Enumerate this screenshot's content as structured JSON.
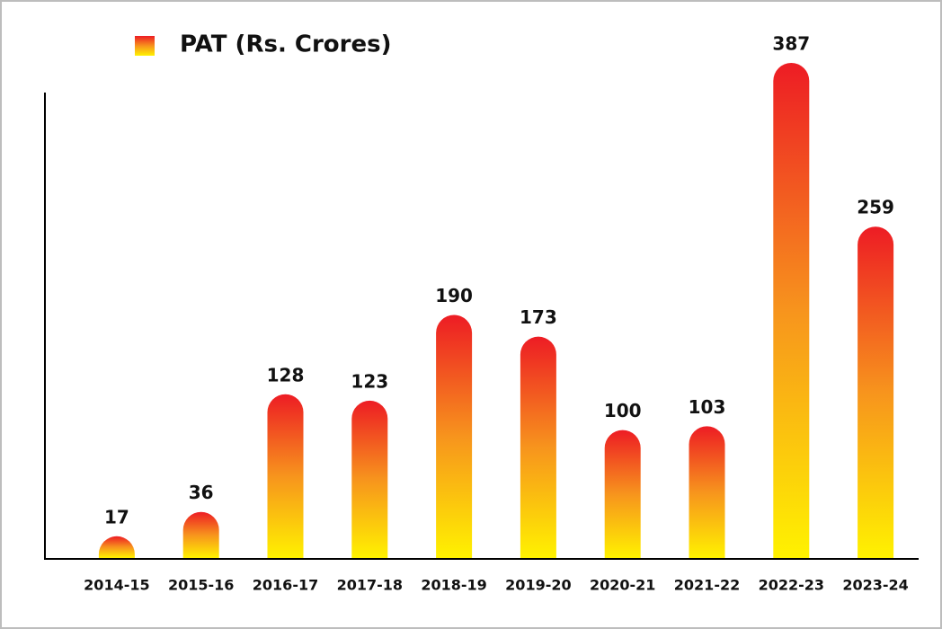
{
  "chart_data": {
    "type": "bar",
    "categories": [
      "2014-15",
      "2015-16",
      "2016-17",
      "2017-18",
      "2018-19",
      "2019-20",
      "2020-21",
      "2021-22",
      "2022-23",
      "2023-24"
    ],
    "series": [
      {
        "name": "PAT (Rs. Crores)",
        "values": [
          17,
          36,
          128,
          123,
          190,
          173,
          100,
          103,
          387,
          259
        ]
      }
    ],
    "gradient_colors": [
      "#ed1c24",
      "#f7941d",
      "#fff200"
    ],
    "legend": "top-left"
  }
}
